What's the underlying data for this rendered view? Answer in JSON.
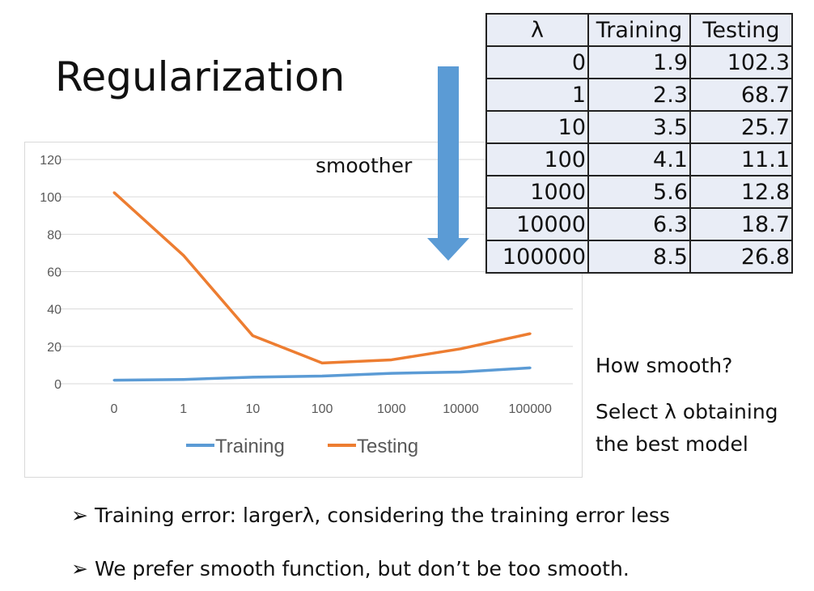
{
  "slide": {
    "title": "Regularization",
    "arrow_label": "smoother",
    "side_text": [
      "How smooth?",
      "Select λ obtaining",
      "the best model"
    ],
    "bullets": [
      "Training error: largerλ, considering the training error less",
      "We prefer smooth function, but don’t be too smooth."
    ],
    "bullet_marker": "➢",
    "arrow_color": "#5b9bd5"
  },
  "table": {
    "headers": [
      "λ",
      "Training",
      "Testing"
    ],
    "rows": [
      [
        "0",
        "1.9",
        "102.3"
      ],
      [
        "1",
        "2.3",
        "68.7"
      ],
      [
        "10",
        "3.5",
        "25.7"
      ],
      [
        "100",
        "4.1",
        "11.1"
      ],
      [
        "1000",
        "5.6",
        "12.8"
      ],
      [
        "10000",
        "6.3",
        "18.7"
      ],
      [
        "100000",
        "8.5",
        "26.8"
      ]
    ]
  },
  "chart_data": {
    "type": "line",
    "categories": [
      "0",
      "1",
      "10",
      "100",
      "1000",
      "10000",
      "100000"
    ],
    "series": [
      {
        "name": "Training",
        "values": [
          1.9,
          2.3,
          3.5,
          4.1,
          5.6,
          6.3,
          8.5
        ],
        "color": "#5b9bd5"
      },
      {
        "name": "Testing",
        "values": [
          102.3,
          68.7,
          25.7,
          11.1,
          12.8,
          18.7,
          26.8
        ],
        "color": "#ed7d31"
      }
    ],
    "ylim": [
      0,
      120
    ],
    "yticks": [
      "0",
      "20",
      "40",
      "60",
      "80",
      "100",
      "120"
    ],
    "grid": true,
    "legend": "bottom"
  }
}
